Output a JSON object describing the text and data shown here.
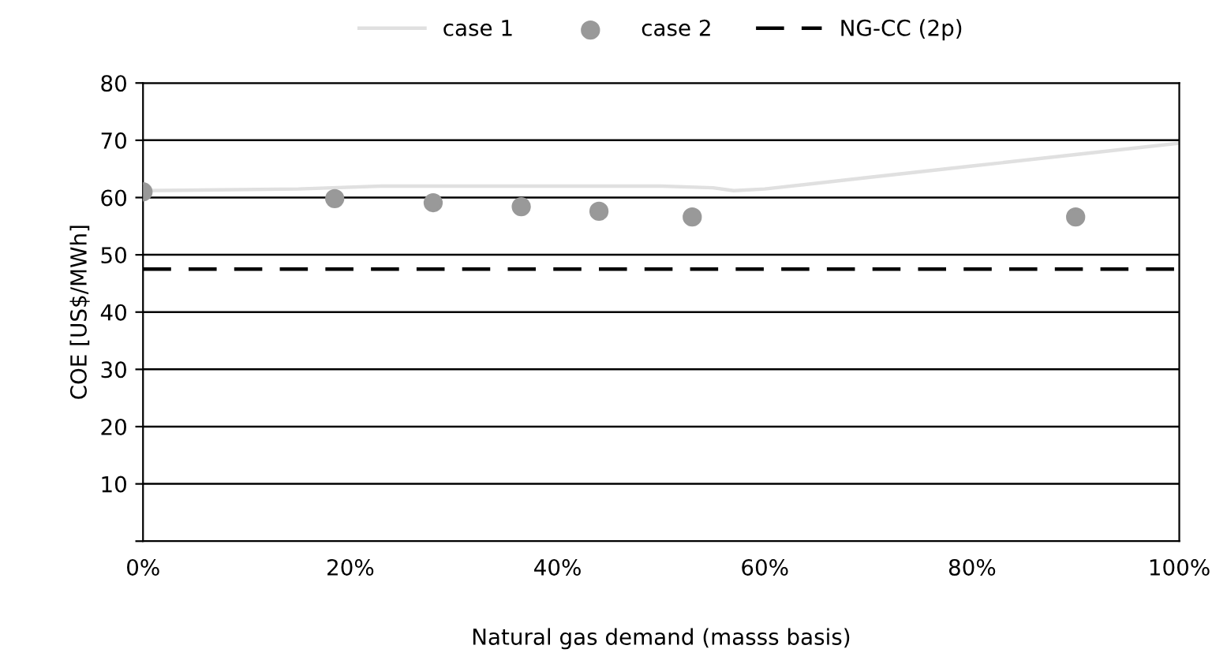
{
  "chart_data": {
    "type": "line",
    "xlabel": "Natural gas demand (masss basis)",
    "ylabel": "COE [US$/MWh]",
    "xlim": [
      0,
      100
    ],
    "xticks": [
      {
        "value": 0,
        "label": "0%"
      },
      {
        "value": 20,
        "label": "20%"
      },
      {
        "value": 40,
        "label": "40%"
      },
      {
        "value": 60,
        "label": "60%"
      },
      {
        "value": 80,
        "label": "80%"
      },
      {
        "value": 100,
        "label": "100%"
      }
    ],
    "ylim": [
      0,
      80
    ],
    "yticks": [
      {
        "value": 0,
        "label": null
      },
      10,
      20,
      30,
      40,
      50,
      60,
      70,
      80
    ],
    "grid": "y",
    "legend": "top",
    "series": [
      {
        "name": "case 1",
        "color": "#e0e0e0",
        "x": [
          0,
          15,
          23,
          50,
          55,
          57,
          60,
          70,
          80,
          90,
          100
        ],
        "values": [
          61.2,
          61.5,
          62,
          62,
          61.7,
          61.2,
          61.5,
          63.5,
          65.5,
          67.5,
          69.5
        ]
      },
      {
        "name": "case 2",
        "type": "scatter",
        "color": "#999999",
        "marker": "circle",
        "x": [
          0,
          18.5,
          28,
          36.5,
          44,
          53,
          90
        ],
        "values": [
          61,
          59.8,
          59.1,
          58.4,
          57.6,
          56.6,
          56.6
        ]
      },
      {
        "name": "NG-CC (2p)",
        "color": "#000000",
        "line_style": "dashed",
        "x": [
          0,
          100
        ],
        "values": [
          47.5,
          47.5
        ]
      }
    ]
  }
}
